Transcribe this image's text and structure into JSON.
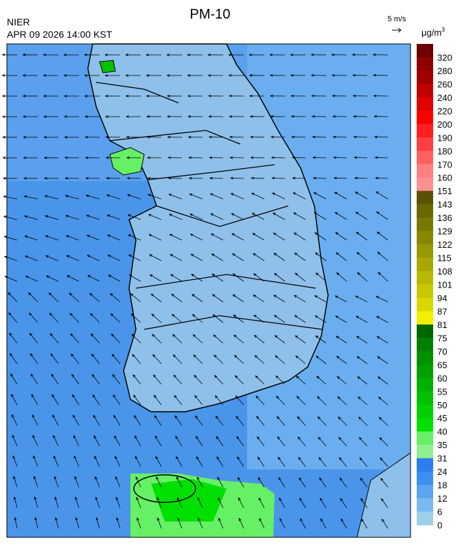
{
  "header": {
    "title": "PM-10",
    "agency": "NIER",
    "datetime": "APR 09 2026 14:00 KST",
    "vector_scale": "5 m/s"
  },
  "colorbar": {
    "unit": {
      "base": "μg/m",
      "sup": "3"
    },
    "labels": [
      "320",
      "280",
      "260",
      "240",
      "220",
      "200",
      "190",
      "180",
      "170",
      "160",
      "151",
      "143",
      "136",
      "129",
      "122",
      "115",
      "108",
      "101",
      "94",
      "87",
      "81",
      "75",
      "70",
      "65",
      "60",
      "55",
      "50",
      "45",
      "40",
      "35",
      "31",
      "24",
      "18",
      "12",
      "6",
      "0"
    ],
    "colors": [
      "#700000",
      "#900000",
      "#a00000",
      "#c00000",
      "#e00000",
      "#ff0000",
      "#ff2020",
      "#ff4040",
      "#ff6060",
      "#ff8080",
      "#ff9090",
      "#5a5200",
      "#686800",
      "#787800",
      "#888800",
      "#989800",
      "#a8a800",
      "#b8b800",
      "#c8c800",
      "#d8d800",
      "#f0f000",
      "#006800",
      "#008000",
      "#009000",
      "#00a000",
      "#00b000",
      "#00c000",
      "#00d000",
      "#00e000",
      "#66f066",
      "#90f090",
      "#2a7ef0",
      "#3c8ff0",
      "#5aa6ee",
      "#7ab8f0",
      "#9fcfe6"
    ]
  }
}
